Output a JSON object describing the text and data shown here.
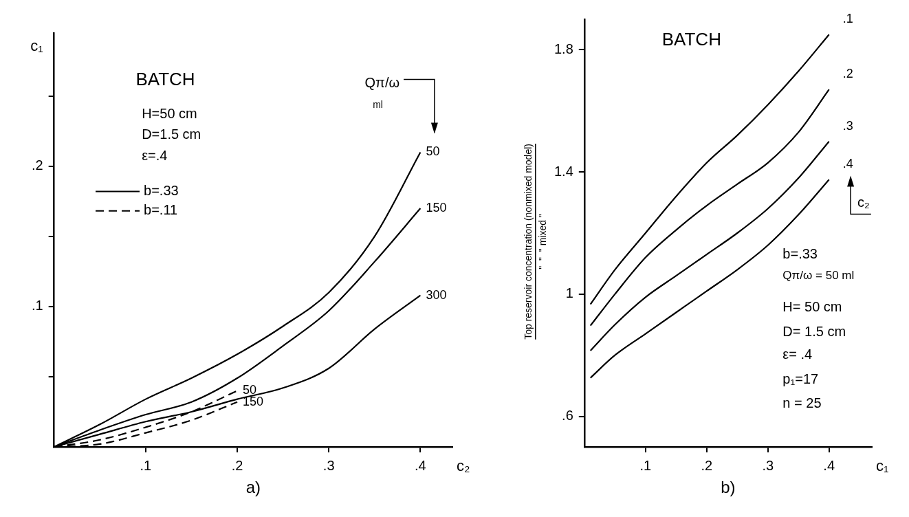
{
  "chart_data": [
    {
      "type": "line",
      "xlabel": "c₂",
      "ylabel": "c₁",
      "xlim": [
        0,
        0.435
      ],
      "ylim": [
        0,
        0.295
      ],
      "xticks": [
        {
          "value": 0.1,
          "label": ".1"
        },
        {
          "value": 0.2,
          "label": ".2"
        },
        {
          "value": 0.3,
          "label": ".3"
        },
        {
          "value": 0.4,
          "label": ".4"
        }
      ],
      "yticks": [
        {
          "value": 0.05,
          "label": null
        },
        {
          "value": 0.1,
          "label": ".1"
        },
        {
          "value": 0.15,
          "label": null
        },
        {
          "value": 0.2,
          "label": ".2"
        },
        {
          "value": 0.25,
          "label": null
        }
      ],
      "grid": false,
      "marker": "none",
      "annotations": [
        "BATCH",
        "H=50 cm",
        "D=1.5 cm",
        "ε=.4",
        "b=.33",
        "b=.11",
        "Qπ/ω",
        "ml",
        "a)"
      ],
      "series": [
        {
          "name": "50",
          "color": "#000000",
          "line_style": "solid",
          "x": [
            0,
            0.05,
            0.1,
            0.15,
            0.2,
            0.25,
            0.3,
            0.35,
            0.4
          ],
          "values": [
            0,
            0.016,
            0.034,
            0.049,
            0.066,
            0.086,
            0.11,
            0.15,
            0.21
          ]
        },
        {
          "name": "150",
          "color": "#000000",
          "line_style": "solid",
          "x": [
            0,
            0.05,
            0.1,
            0.15,
            0.2,
            0.25,
            0.3,
            0.35,
            0.4
          ],
          "values": [
            0,
            0.012,
            0.023,
            0.032,
            0.049,
            0.072,
            0.097,
            0.132,
            0.17
          ]
        },
        {
          "name": "300",
          "color": "#000000",
          "line_style": "solid",
          "x": [
            0,
            0.05,
            0.1,
            0.15,
            0.2,
            0.25,
            0.3,
            0.35,
            0.4
          ],
          "values": [
            0,
            0.009,
            0.018,
            0.025,
            0.034,
            0.042,
            0.056,
            0.084,
            0.108
          ]
        },
        {
          "name": "50",
          "color": "#000000",
          "line_style": "dashed",
          "x": [
            0,
            0.05,
            0.1,
            0.15,
            0.2
          ],
          "values": [
            0,
            0.005,
            0.014,
            0.025,
            0.04
          ]
        },
        {
          "name": "150",
          "color": "#000000",
          "line_style": "dashed",
          "x": [
            0,
            0.05,
            0.1,
            0.15,
            0.2
          ],
          "values": [
            0,
            0.002,
            0.01,
            0.019,
            0.032
          ]
        }
      ]
    },
    {
      "type": "line",
      "xlabel": "c₁",
      "ylabel": "Top reservoir concentration (nonmixed model)",
      "xlim": [
        0,
        0.47
      ],
      "ylim": [
        0.5,
        1.9
      ],
      "xticks": [
        {
          "value": 0.1,
          "label": ".1"
        },
        {
          "value": 0.2,
          "label": ".2"
        },
        {
          "value": 0.3,
          "label": ".3"
        },
        {
          "value": 0.4,
          "label": ".4"
        }
      ],
      "yticks": [
        {
          "value": 0.6,
          "label": ".6"
        },
        1,
        1.4,
        1.8
      ],
      "grid": false,
      "marker": "none",
      "annotations": [
        "BATCH",
        "b=.33",
        "Qπ/ω = 50 ml",
        "H= 50 cm",
        "D= 1.5 cm",
        "ε= .4",
        "p₁=17",
        "n = 25",
        "c₂",
        "b)",
        "\"  \"  \" mixed \""
      ],
      "series": [
        {
          "name": ".1",
          "color": "#000000",
          "line_style": "solid",
          "x": [
            0.01,
            0.05,
            0.1,
            0.15,
            0.2,
            0.25,
            0.3,
            0.35,
            0.4
          ],
          "values": [
            0.967,
            1.08,
            1.2,
            1.32,
            1.43,
            1.52,
            1.62,
            1.73,
            1.85
          ]
        },
        {
          "name": ".2",
          "color": "#000000",
          "line_style": "solid",
          "x": [
            0.01,
            0.05,
            0.1,
            0.15,
            0.2,
            0.25,
            0.3,
            0.35,
            0.4
          ],
          "values": [
            0.897,
            1.0,
            1.12,
            1.21,
            1.29,
            1.36,
            1.43,
            1.53,
            1.67
          ]
        },
        {
          "name": ".3",
          "color": "#000000",
          "line_style": "solid",
          "x": [
            0.01,
            0.05,
            0.1,
            0.15,
            0.2,
            0.25,
            0.3,
            0.35,
            0.4
          ],
          "values": [
            0.815,
            0.9,
            0.99,
            1.06,
            1.13,
            1.2,
            1.28,
            1.38,
            1.5
          ]
        },
        {
          "name": ".4",
          "color": "#000000",
          "line_style": "solid",
          "x": [
            0.01,
            0.05,
            0.1,
            0.15,
            0.2,
            0.25,
            0.3,
            0.35,
            0.4
          ],
          "values": [
            0.726,
            0.8,
            0.87,
            0.94,
            1.01,
            1.08,
            1.16,
            1.26,
            1.375
          ]
        }
      ]
    }
  ]
}
